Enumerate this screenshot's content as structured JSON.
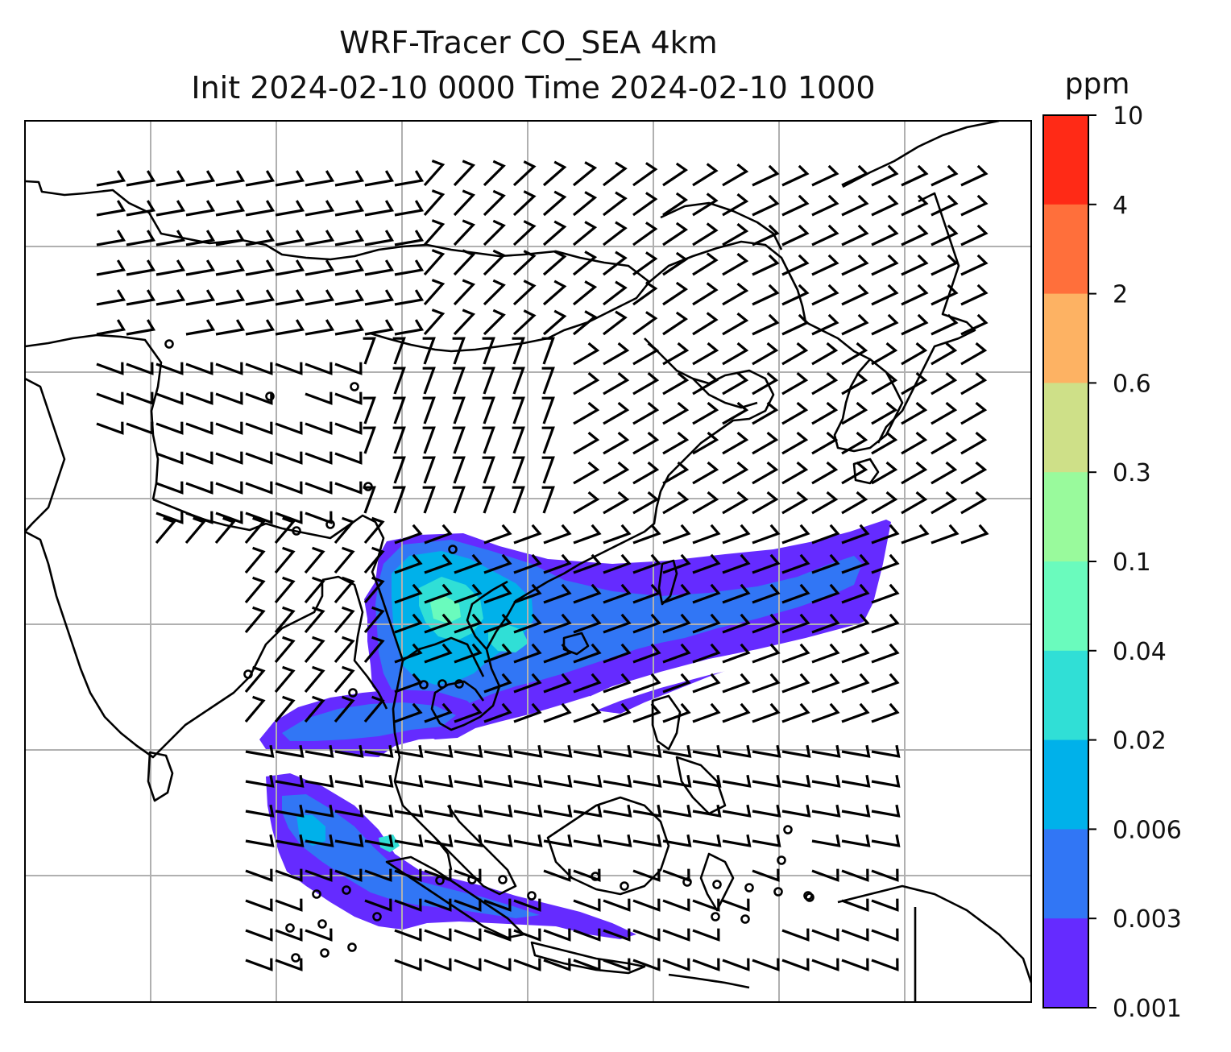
{
  "title": {
    "line1": "WRF-Tracer CO_SEA 4km",
    "line2": "Init 2024-02-10 0000 Time 2024-02-10 1000"
  },
  "colorbar": {
    "unit": "ppm",
    "ticks": [
      "10",
      "4",
      "2",
      "0.6",
      "0.3",
      "0.1",
      "0.04",
      "0.02",
      "0.006",
      "0.003",
      "0.001"
    ],
    "colors": [
      "#ff2a16",
      "#ff6f3b",
      "#fdb263",
      "#cee088",
      "#99fa9c",
      "#6afbbd",
      "#30dfd6",
      "#00b1ea",
      "#3176f5",
      "#652bff"
    ]
  },
  "field_colors": {
    "level1": "#652bff",
    "level2": "#3176f5",
    "level3": "#00b1ea",
    "level4": "#30dfd6",
    "level5": "#6afbbd"
  }
}
